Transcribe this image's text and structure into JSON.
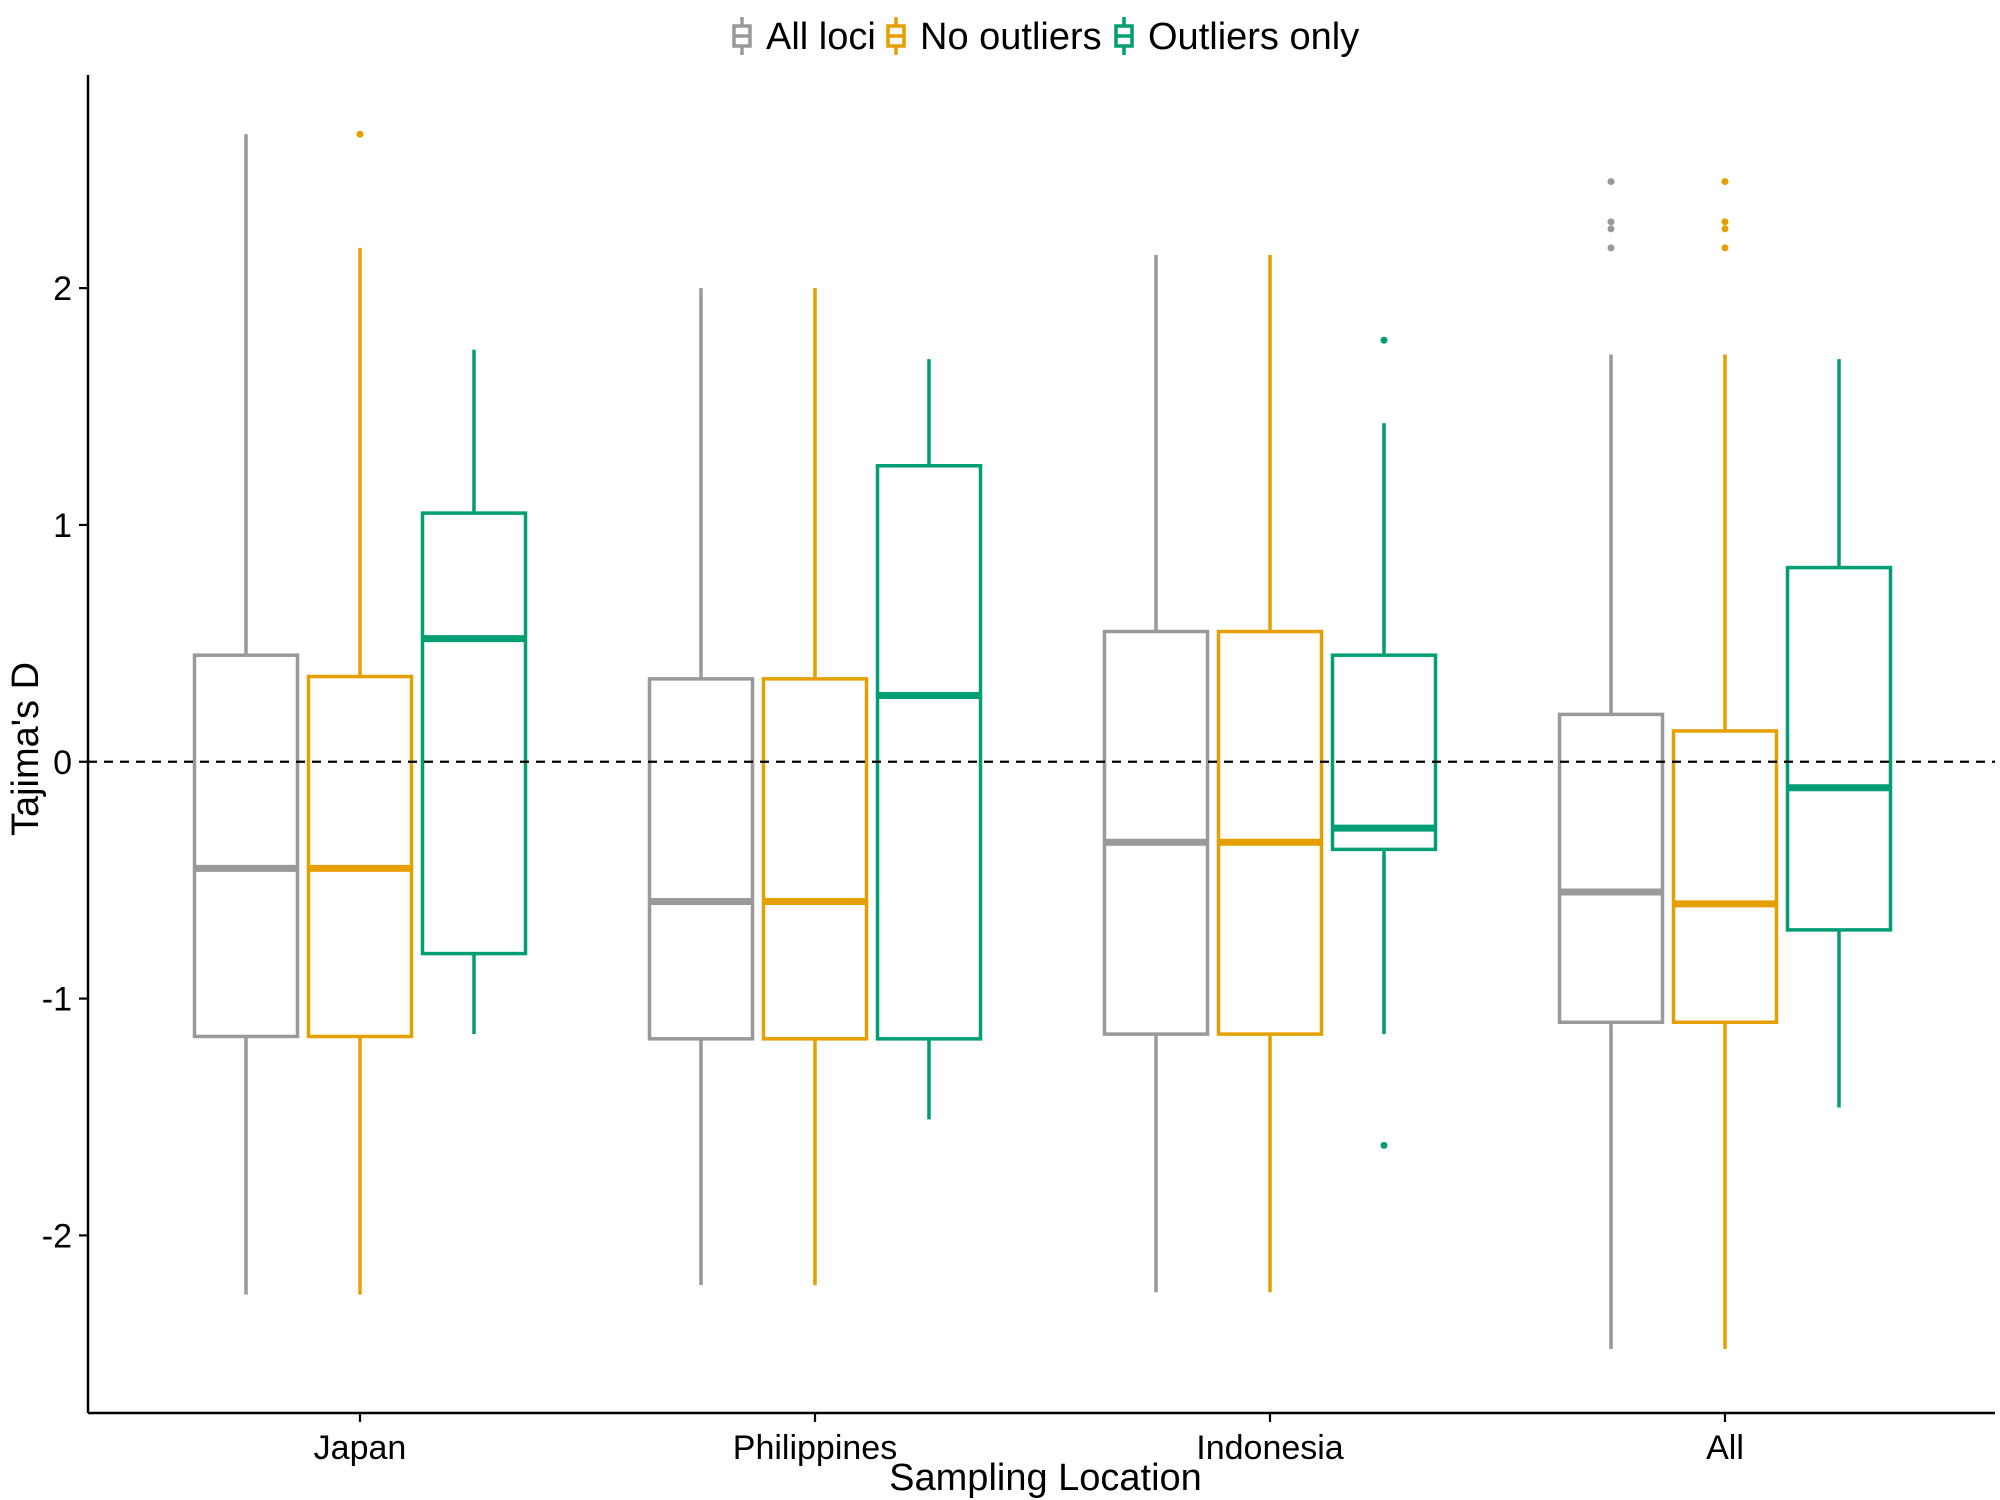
{
  "chart_data": {
    "type": "boxplot",
    "title": "",
    "xlabel": "Sampling Location",
    "ylabel": "Tajima's D",
    "categories": [
      "Japan",
      "Philippines",
      "Indonesia",
      "All"
    ],
    "ylim": [
      -2.75,
      2.9
    ],
    "yticks": [
      -2,
      -1,
      0,
      1,
      2
    ],
    "reference_line": {
      "y": 0,
      "style": "dashed"
    },
    "legend_position": "top",
    "grid": false,
    "series": [
      {
        "name": "All loci",
        "color": "#999999",
        "boxes": [
          {
            "category": "Japan",
            "whisker_low": -2.25,
            "q1": -1.16,
            "median": -0.45,
            "q3": 0.45,
            "whisker_high": 2.65,
            "outliers": []
          },
          {
            "category": "Philippines",
            "whisker_low": -2.21,
            "q1": -1.17,
            "median": -0.59,
            "q3": 0.35,
            "whisker_high": 2.0,
            "outliers": []
          },
          {
            "category": "Indonesia",
            "whisker_low": -2.24,
            "q1": -1.15,
            "median": -0.34,
            "q3": 0.55,
            "whisker_high": 2.14,
            "outliers": []
          },
          {
            "category": "All",
            "whisker_low": -2.48,
            "q1": -1.1,
            "median": -0.55,
            "q3": 0.2,
            "whisker_high": 1.72,
            "outliers": [
              2.17,
              2.25,
              2.28,
              2.45
            ]
          }
        ]
      },
      {
        "name": "No outliers",
        "color": "#E69F00",
        "boxes": [
          {
            "category": "Japan",
            "whisker_low": -2.25,
            "q1": -1.16,
            "median": -0.45,
            "q3": 0.36,
            "whisker_high": 2.17,
            "outliers": [
              2.65
            ]
          },
          {
            "category": "Philippines",
            "whisker_low": -2.21,
            "q1": -1.17,
            "median": -0.59,
            "q3": 0.35,
            "whisker_high": 2.0,
            "outliers": []
          },
          {
            "category": "Indonesia",
            "whisker_low": -2.24,
            "q1": -1.15,
            "median": -0.34,
            "q3": 0.55,
            "whisker_high": 2.14,
            "outliers": []
          },
          {
            "category": "All",
            "whisker_low": -2.48,
            "q1": -1.1,
            "median": -0.6,
            "q3": 0.13,
            "whisker_high": 1.72,
            "outliers": [
              2.17,
              2.25,
              2.28,
              2.45
            ]
          }
        ]
      },
      {
        "name": "Outliers only",
        "color": "#009E73",
        "boxes": [
          {
            "category": "Japan",
            "whisker_low": -1.15,
            "q1": -0.81,
            "median": 0.52,
            "q3": 1.05,
            "whisker_high": 1.74,
            "outliers": []
          },
          {
            "category": "Philippines",
            "whisker_low": -1.51,
            "q1": -1.17,
            "median": 0.28,
            "q3": 1.25,
            "whisker_high": 1.7,
            "outliers": []
          },
          {
            "category": "Indonesia",
            "whisker_low": -1.15,
            "q1": -0.37,
            "median": -0.28,
            "q3": 0.45,
            "whisker_high": 1.43,
            "outliers": [
              1.78,
              -1.62
            ]
          },
          {
            "category": "All",
            "whisker_low": -1.46,
            "q1": -0.71,
            "median": -0.11,
            "q3": 0.82,
            "whisker_high": 1.7,
            "outliers": []
          }
        ]
      }
    ]
  }
}
